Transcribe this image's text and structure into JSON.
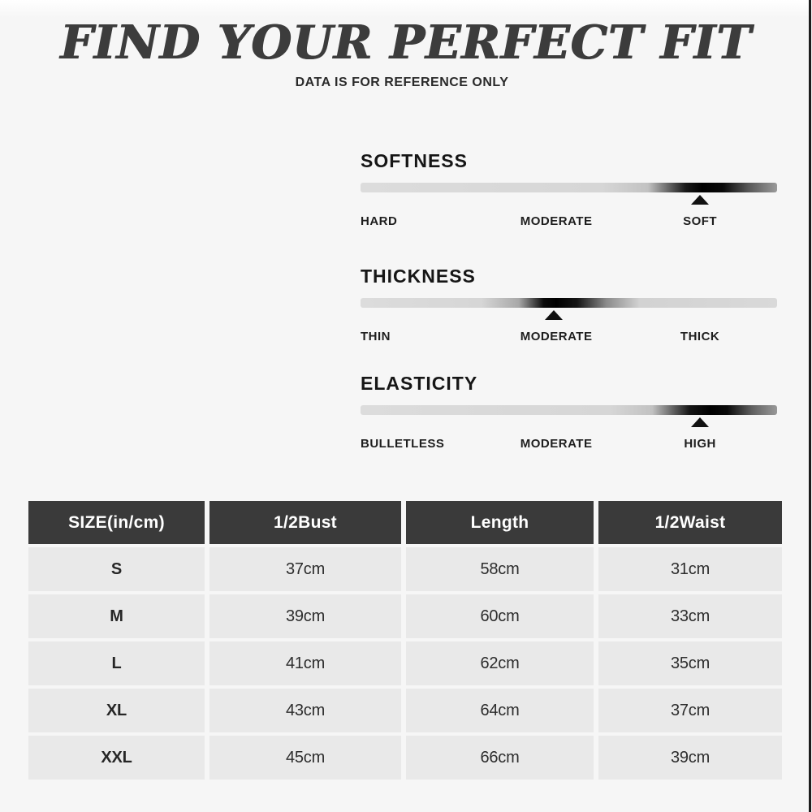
{
  "header": {
    "title": "FIND YOUR PERFECT FIT",
    "subtitle": "DATA IS FOR REFERENCE ONLY"
  },
  "scales": [
    {
      "name": "SOFTNESS",
      "labels": [
        "HARD",
        "MODERATE",
        "SOFT"
      ],
      "selected": "SOFT",
      "marker_percent": 81.5
    },
    {
      "name": "THICKNESS",
      "labels": [
        "THIN",
        "MODERATE",
        "THICK"
      ],
      "selected": "MODERATE",
      "marker_percent": 46.3
    },
    {
      "name": "ELASTICITY",
      "labels": [
        "BULLETLESS",
        "MODERATE",
        "HIGH"
      ],
      "selected": "HIGH",
      "marker_percent": 81.5
    }
  ],
  "chart_data": {
    "type": "table",
    "title": "FIND YOUR PERFECT FIT",
    "subtitle": "DATA IS FOR REFERENCE ONLY",
    "columns": [
      "SIZE(in/cm)",
      "1/2Bust",
      "Length",
      "1/2Waist"
    ],
    "rows": [
      [
        "S",
        "37cm",
        "58cm",
        "31cm"
      ],
      [
        "M",
        "39cm",
        "60cm",
        "33cm"
      ],
      [
        "L",
        "41cm",
        "62cm",
        "35cm"
      ],
      [
        "XL",
        "43cm",
        "64cm",
        "37cm"
      ],
      [
        "XXL",
        "45cm",
        "66cm",
        "39cm"
      ]
    ]
  },
  "colors": {
    "page_bg": "#f6f6f6",
    "table_header_bg": "#3a3a3a",
    "table_header_text": "#ffffff",
    "table_cell_bg": "#e9e9e9",
    "scale_bar_base": "#d9d9d9",
    "scale_bar_peak": "#000000",
    "marker": "#111111"
  }
}
